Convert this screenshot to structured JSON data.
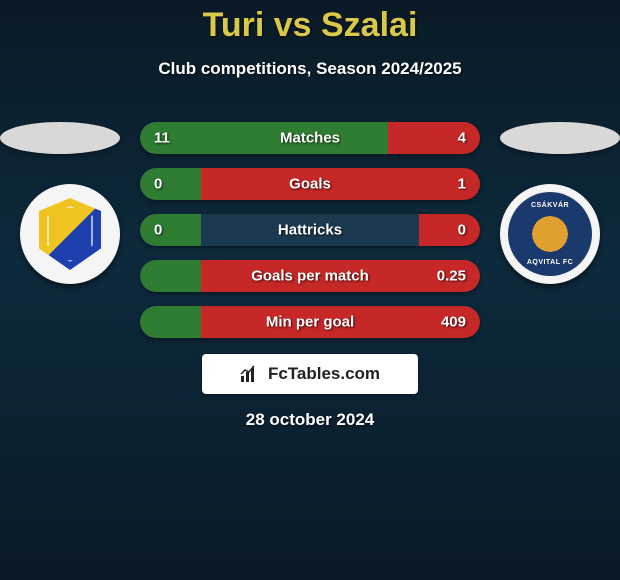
{
  "title": "Turi vs Szalai",
  "subtitle": "Club competitions, Season 2024/2025",
  "date": "28 october 2024",
  "branding": {
    "text": "FcTables.com"
  },
  "club_left": {
    "text_top": "",
    "colors": [
      "#f0c420",
      "#1e40af"
    ]
  },
  "club_right": {
    "text_top": "CSÁKVÁR",
    "text_bot": "AQVITAL FC",
    "colors": [
      "#e0a030",
      "#1a3a6e",
      "#f0c420"
    ]
  },
  "bar_colors": {
    "left": "#2e7d32",
    "right": "#c62828",
    "track": "#1a3a4f"
  },
  "stats": [
    {
      "label": "Matches",
      "left_val": "11",
      "right_val": "4",
      "left_pct": 73,
      "right_pct": 27
    },
    {
      "label": "Goals",
      "left_val": "0",
      "right_val": "1",
      "left_pct": 18,
      "right_pct": 82
    },
    {
      "label": "Hattricks",
      "left_val": "0",
      "right_val": "0",
      "left_pct": 18,
      "right_pct": 18
    },
    {
      "label": "Goals per match",
      "left_val": "",
      "right_val": "0.25",
      "left_pct": 18,
      "right_pct": 82
    },
    {
      "label": "Min per goal",
      "left_val": "",
      "right_val": "409",
      "left_pct": 18,
      "right_pct": 82
    }
  ]
}
